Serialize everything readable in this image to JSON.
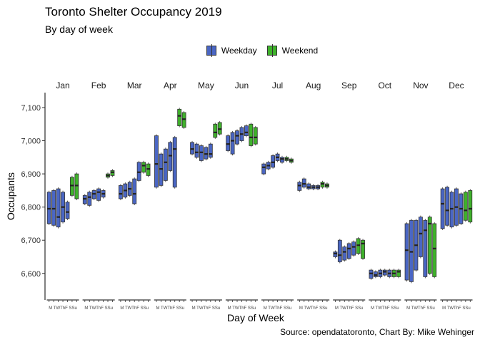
{
  "chart_data": {
    "type": "boxplot",
    "title": "Toronto Shelter Occupancy 2019",
    "subtitle": "By day of week",
    "caption": "Source: opendatatoronto, Chart By: Mike Wehinger",
    "xlabel": "Day of Week",
    "ylabel": "Occupants",
    "ylim": [
      6520,
      7145
    ],
    "yticks": [
      6600,
      6700,
      6800,
      6900,
      7000,
      7100
    ],
    "ytick_labels": [
      "6,600",
      "6,700",
      "6,800",
      "6,900",
      "7,000",
      "7,100"
    ],
    "grid": false,
    "legend_position": "top",
    "legend": [
      {
        "name": "Weekday",
        "color": "#4a66c4"
      },
      {
        "name": "Weekend",
        "color": "#3fb22b"
      }
    ],
    "days": [
      "M",
      "T",
      "W",
      "Th",
      "F",
      "S",
      "Su"
    ],
    "day_labels_text": "M TWThF SSu",
    "months": [
      {
        "name": "Jan",
        "boxes": [
          [
            6750,
            6795,
            6845
          ],
          [
            6745,
            6795,
            6850
          ],
          [
            6740,
            6770,
            6855
          ],
          [
            6755,
            6800,
            6845
          ],
          [
            6765,
            6785,
            6815
          ],
          [
            6835,
            6865,
            6890
          ],
          [
            6825,
            6865,
            6900
          ]
        ]
      },
      {
        "name": "Feb",
        "boxes": [
          [
            6810,
            6825,
            6835
          ],
          [
            6805,
            6830,
            6845
          ],
          [
            6825,
            6840,
            6850
          ],
          [
            6820,
            6845,
            6855
          ],
          [
            6830,
            6840,
            6850
          ],
          [
            6890,
            6895,
            6900
          ],
          [
            6895,
            6905,
            6910
          ]
        ]
      },
      {
        "name": "Mar",
        "boxes": [
          [
            6825,
            6840,
            6865
          ],
          [
            6830,
            6850,
            6870
          ],
          [
            6835,
            6855,
            6875
          ],
          [
            6810,
            6840,
            6885
          ],
          [
            6880,
            6905,
            6935
          ],
          [
            6905,
            6925,
            6935
          ],
          [
            6895,
            6915,
            6930
          ]
        ]
      },
      {
        "name": "Apr",
        "boxes": [
          [
            6860,
            6930,
            7015
          ],
          [
            6865,
            6915,
            6960
          ],
          [
            6880,
            6935,
            6975
          ],
          [
            6910,
            6955,
            6995
          ],
          [
            6860,
            6975,
            7010
          ],
          [
            7045,
            7075,
            7095
          ],
          [
            7040,
            7065,
            7085
          ]
        ]
      },
      {
        "name": "May",
        "boxes": [
          [
            6960,
            6975,
            6995
          ],
          [
            6950,
            6965,
            6990
          ],
          [
            6940,
            6965,
            6985
          ],
          [
            6945,
            6960,
            6980
          ],
          [
            6950,
            6960,
            6990
          ],
          [
            7010,
            7025,
            7050
          ],
          [
            7020,
            7035,
            7055
          ]
        ]
      },
      {
        "name": "Jun",
        "boxes": [
          [
            6970,
            6990,
            7015
          ],
          [
            6960,
            7000,
            7025
          ],
          [
            6990,
            7015,
            7030
          ],
          [
            7000,
            7020,
            7040
          ],
          [
            7015,
            7025,
            7045
          ],
          [
            6985,
            7010,
            7050
          ],
          [
            6990,
            7010,
            7040
          ]
        ]
      },
      {
        "name": "Jul",
        "boxes": [
          [
            6900,
            6920,
            6930
          ],
          [
            6915,
            6925,
            6935
          ],
          [
            6920,
            6935,
            6955
          ],
          [
            6940,
            6950,
            6960
          ],
          [
            6935,
            6945,
            6950
          ],
          [
            6940,
            6945,
            6950
          ],
          [
            6935,
            6940,
            6945
          ]
        ]
      },
      {
        "name": "Aug",
        "boxes": [
          [
            6850,
            6865,
            6875
          ],
          [
            6860,
            6870,
            6885
          ],
          [
            6855,
            6860,
            6870
          ],
          [
            6855,
            6860,
            6865
          ],
          [
            6855,
            6860,
            6865
          ],
          [
            6860,
            6870,
            6875
          ],
          [
            6860,
            6865,
            6870
          ]
        ]
      },
      {
        "name": "Sep",
        "boxes": [
          [
            6650,
            6660,
            6665
          ],
          [
            6635,
            6655,
            6700
          ],
          [
            6640,
            6665,
            6680
          ],
          [
            6645,
            6675,
            6690
          ],
          [
            6655,
            6680,
            6695
          ],
          [
            6660,
            6685,
            6705
          ],
          [
            6645,
            6690,
            6700
          ]
        ]
      },
      {
        "name": "Oct",
        "boxes": [
          [
            6585,
            6600,
            6610
          ],
          [
            6590,
            6595,
            6605
          ],
          [
            6590,
            6600,
            6610
          ],
          [
            6595,
            6605,
            6610
          ],
          [
            6590,
            6600,
            6610
          ],
          [
            6590,
            6600,
            6610
          ],
          [
            6590,
            6605,
            6610
          ]
        ]
      },
      {
        "name": "Nov",
        "boxes": [
          [
            6580,
            6670,
            6750
          ],
          [
            6575,
            6665,
            6760
          ],
          [
            6610,
            6685,
            6760
          ],
          [
            6650,
            6720,
            6770
          ],
          [
            6590,
            6730,
            6760
          ],
          [
            6600,
            6750,
            6770
          ],
          [
            6590,
            6675,
            6750
          ]
        ]
      },
      {
        "name": "Dec",
        "boxes": [
          [
            6735,
            6810,
            6855
          ],
          [
            6745,
            6790,
            6860
          ],
          [
            6740,
            6795,
            6845
          ],
          [
            6745,
            6800,
            6855
          ],
          [
            6750,
            6795,
            6840
          ],
          [
            6760,
            6790,
            6845
          ],
          [
            6755,
            6795,
            6850
          ]
        ]
      }
    ]
  }
}
